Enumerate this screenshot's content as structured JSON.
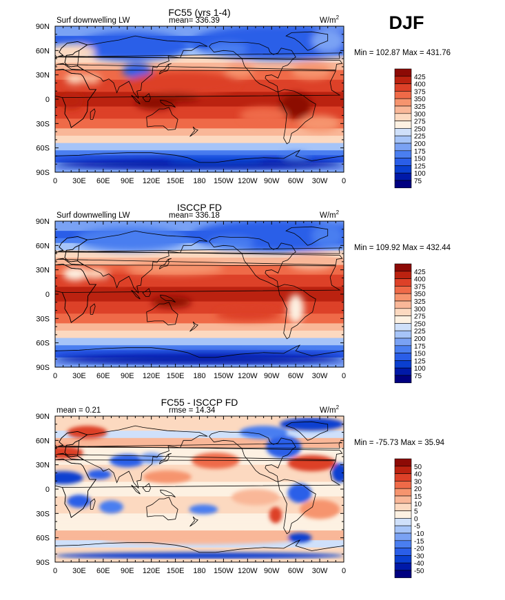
{
  "figure": {
    "season": "DJF",
    "colors": {
      "land_outline": "#000000",
      "frame": "#000000"
    }
  },
  "panels": [
    {
      "title": "FC55 (yrs 1-4)",
      "variable_label": "Surf downwelling LW",
      "mean_label": "mean= 336.39",
      "units_base": "W/m",
      "units_exp": "2",
      "stats": "Min = 102.87 Max = 431.76",
      "kind": "absolute",
      "colorbar_levels": [
        "425",
        "400",
        "375",
        "350",
        "325",
        "300",
        "275",
        "250",
        "225",
        "200",
        "175",
        "150",
        "125",
        "100",
        "75"
      ]
    },
    {
      "title": "ISCCP FD",
      "variable_label": "Surf downwelling LW",
      "mean_label": "mean= 336.18",
      "units_base": "W/m",
      "units_exp": "2",
      "stats": "Min = 109.92 Max = 432.44",
      "kind": "absolute",
      "colorbar_levels": [
        "425",
        "400",
        "375",
        "350",
        "325",
        "300",
        "275",
        "250",
        "225",
        "200",
        "175",
        "150",
        "125",
        "100",
        "75"
      ]
    },
    {
      "title": "FC55 - ISCCP FD",
      "mean_label": "mean =    0.21",
      "rmse_label": "rmse =   14.34",
      "units_base": "W/m",
      "units_exp": "2",
      "stats": "Min = -75.73 Max =  35.94",
      "kind": "difference",
      "colorbar_levels": [
        "50",
        "40",
        "30",
        "20",
        "15",
        "10",
        "5",
        "0",
        "-5",
        "-10",
        "-15",
        "-20",
        "-30",
        "-40",
        "-50"
      ]
    }
  ],
  "chart_data": [
    {
      "type": "heatmap",
      "title": "FC55 (yrs 1-4)",
      "xlabel": "",
      "ylabel": "",
      "x_ticks": [
        "0",
        "30E",
        "60E",
        "90E",
        "120E",
        "150E",
        "180",
        "150W",
        "120W",
        "90W",
        "60W",
        "30W",
        "0"
      ],
      "y_ticks": [
        "90N",
        "60N",
        "30N",
        "0",
        "30S",
        "60S",
        "90S"
      ],
      "xlim": [
        0,
        360
      ],
      "ylim": [
        -90,
        90
      ],
      "zmin": 102.87,
      "zmax": 431.76,
      "zmean": 336.39,
      "levels": [
        75,
        100,
        125,
        150,
        175,
        200,
        225,
        250,
        275,
        300,
        325,
        350,
        375,
        400,
        425
      ],
      "palette": [
        "#000080",
        "#0019a8",
        "#0a3fd0",
        "#2a5ee8",
        "#4a7ef0",
        "#7aa2f4",
        "#a6c4f8",
        "#cfe0fa",
        "#fdf1e2",
        "#fcd9c0",
        "#f9b798",
        "#f6946e",
        "#ef6a48",
        "#dd4128",
        "#bb2210",
        "#8c0a05"
      ]
    },
    {
      "type": "heatmap",
      "title": "ISCCP FD",
      "xlabel": "",
      "ylabel": "",
      "x_ticks": [
        "0",
        "30E",
        "60E",
        "90E",
        "120E",
        "150E",
        "180",
        "150W",
        "120W",
        "90W",
        "60W",
        "30W",
        "0"
      ],
      "y_ticks": [
        "90N",
        "60N",
        "30N",
        "0",
        "30S",
        "60S",
        "90S"
      ],
      "xlim": [
        0,
        360
      ],
      "ylim": [
        -90,
        90
      ],
      "zmin": 109.92,
      "zmax": 432.44,
      "zmean": 336.18,
      "levels": [
        75,
        100,
        125,
        150,
        175,
        200,
        225,
        250,
        275,
        300,
        325,
        350,
        375,
        400,
        425
      ],
      "palette": [
        "#000080",
        "#0019a8",
        "#0a3fd0",
        "#2a5ee8",
        "#4a7ef0",
        "#7aa2f4",
        "#a6c4f8",
        "#cfe0fa",
        "#fdf1e2",
        "#fcd9c0",
        "#f9b798",
        "#f6946e",
        "#ef6a48",
        "#dd4128",
        "#bb2210",
        "#8c0a05"
      ]
    },
    {
      "type": "heatmap",
      "title": "FC55 - ISCCP FD",
      "xlabel": "",
      "ylabel": "",
      "x_ticks": [
        "0",
        "30E",
        "60E",
        "90E",
        "120E",
        "150E",
        "180",
        "150W",
        "120W",
        "90W",
        "60W",
        "30W",
        "0"
      ],
      "y_ticks": [
        "90N",
        "60N",
        "30N",
        "0",
        "30S",
        "60S",
        "90S"
      ],
      "xlim": [
        0,
        360
      ],
      "ylim": [
        -90,
        90
      ],
      "zmin": -75.73,
      "zmax": 35.94,
      "zmean": 0.21,
      "rmse": 14.34,
      "levels": [
        -50,
        -40,
        -30,
        -20,
        -15,
        -10,
        -5,
        0,
        5,
        10,
        15,
        20,
        30,
        40,
        50
      ],
      "palette": [
        "#000080",
        "#0019a8",
        "#0a3fd0",
        "#2a5ee8",
        "#4a7ef0",
        "#7aa2f4",
        "#a6c4f8",
        "#cfe0fa",
        "#fdf1e2",
        "#fcd9c0",
        "#f9b798",
        "#f6946e",
        "#ef6a48",
        "#dd4128",
        "#bb2210",
        "#8c0a05"
      ]
    }
  ]
}
